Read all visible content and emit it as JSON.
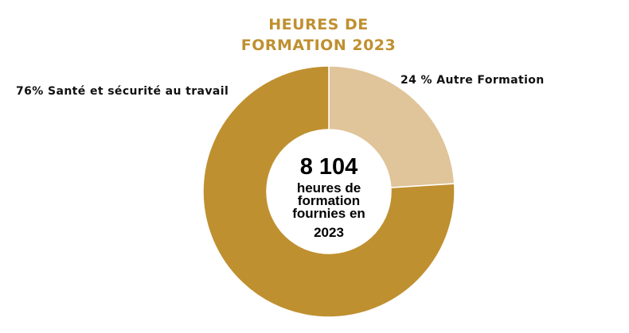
{
  "chart_data": {
    "type": "pie",
    "title_lines": [
      "HEURES DE",
      "FORMATION 2023"
    ],
    "slices": [
      {
        "label": "76% Santé et sécurité au travail",
        "value": 76,
        "color": "#BF9030"
      },
      {
        "label": "24 % Autre Formation",
        "value": 24,
        "color": "#E0C49A"
      }
    ],
    "center": {
      "value": "8 104",
      "description": "heures de formation fournies en",
      "year": "2023"
    },
    "legend": "none"
  }
}
